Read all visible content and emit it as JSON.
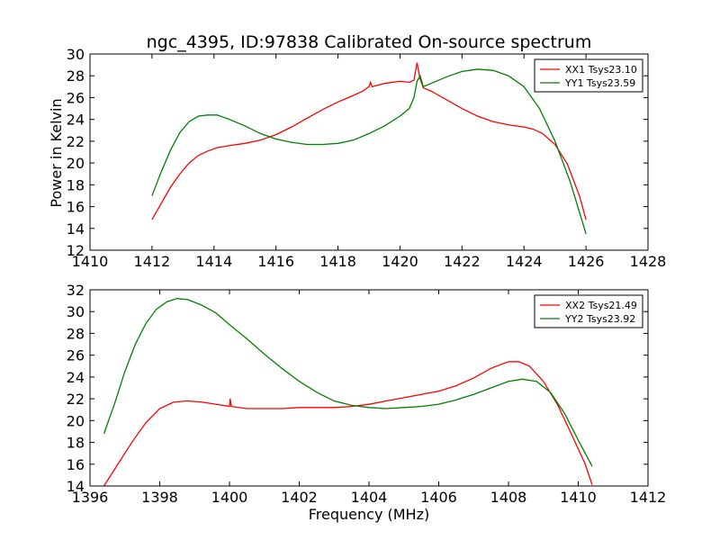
{
  "figure": {
    "title": "ngc_4395, ID:97838 Calibrated On-source spectrum",
    "ylabel": "Power in Kelvin",
    "xlabel": "Frequency (MHz)"
  },
  "chart_data": [
    {
      "type": "line",
      "xlim": [
        1410,
        1428
      ],
      "ylim": [
        12,
        30
      ],
      "xticks": [
        1410,
        1412,
        1414,
        1416,
        1418,
        1420,
        1422,
        1424,
        1426,
        1428
      ],
      "yticks": [
        12,
        14,
        16,
        18,
        20,
        22,
        24,
        26,
        28,
        30
      ],
      "legend": "top-right",
      "series": [
        {
          "name": "XX1 Tsys23.10",
          "color": "#ff0000",
          "points": [
            [
              1412.0,
              14.8
            ],
            [
              1412.3,
              16.3
            ],
            [
              1412.6,
              17.8
            ],
            [
              1412.9,
              19.0
            ],
            [
              1413.2,
              20.0
            ],
            [
              1413.5,
              20.7
            ],
            [
              1413.8,
              21.1
            ],
            [
              1414.1,
              21.4
            ],
            [
              1414.5,
              21.6
            ],
            [
              1415.0,
              21.8
            ],
            [
              1415.5,
              22.1
            ],
            [
              1416.0,
              22.6
            ],
            [
              1416.5,
              23.3
            ],
            [
              1417.0,
              24.1
            ],
            [
              1417.5,
              24.9
            ],
            [
              1418.0,
              25.6
            ],
            [
              1418.5,
              26.2
            ],
            [
              1418.8,
              26.6
            ],
            [
              1419.0,
              27.0
            ],
            [
              1419.05,
              27.4
            ],
            [
              1419.1,
              27.0
            ],
            [
              1419.5,
              27.3
            ],
            [
              1420.0,
              27.5
            ],
            [
              1420.3,
              27.4
            ],
            [
              1420.45,
              27.6
            ],
            [
              1420.55,
              29.2
            ],
            [
              1420.65,
              27.7
            ],
            [
              1420.75,
              26.9
            ],
            [
              1421.0,
              26.6
            ],
            [
              1421.5,
              25.8
            ],
            [
              1422.0,
              25.0
            ],
            [
              1422.5,
              24.3
            ],
            [
              1423.0,
              23.8
            ],
            [
              1423.5,
              23.5
            ],
            [
              1424.0,
              23.3
            ],
            [
              1424.3,
              23.1
            ],
            [
              1424.6,
              22.7
            ],
            [
              1425.0,
              21.7
            ],
            [
              1425.4,
              19.9
            ],
            [
              1425.8,
              16.9
            ],
            [
              1426.0,
              14.8
            ]
          ]
        },
        {
          "name": "YY1 Tsys23.59",
          "color": "#008000",
          "points": [
            [
              1412.0,
              17.0
            ],
            [
              1412.3,
              19.2
            ],
            [
              1412.6,
              21.2
            ],
            [
              1412.9,
              22.8
            ],
            [
              1413.2,
              23.8
            ],
            [
              1413.5,
              24.3
            ],
            [
              1413.8,
              24.4
            ],
            [
              1414.1,
              24.4
            ],
            [
              1414.5,
              24.0
            ],
            [
              1415.0,
              23.4
            ],
            [
              1415.5,
              22.7
            ],
            [
              1416.0,
              22.2
            ],
            [
              1416.5,
              21.9
            ],
            [
              1417.0,
              21.7
            ],
            [
              1417.5,
              21.7
            ],
            [
              1418.0,
              21.8
            ],
            [
              1418.5,
              22.1
            ],
            [
              1419.0,
              22.7
            ],
            [
              1419.5,
              23.4
            ],
            [
              1420.0,
              24.3
            ],
            [
              1420.3,
              25.0
            ],
            [
              1420.45,
              26.0
            ],
            [
              1420.55,
              27.5
            ],
            [
              1420.65,
              28.0
            ],
            [
              1420.75,
              27.0
            ],
            [
              1421.0,
              27.3
            ],
            [
              1421.5,
              27.9
            ],
            [
              1422.0,
              28.4
            ],
            [
              1422.5,
              28.6
            ],
            [
              1423.0,
              28.5
            ],
            [
              1423.5,
              28.0
            ],
            [
              1424.0,
              27.0
            ],
            [
              1424.5,
              25.0
            ],
            [
              1425.0,
              22.0
            ],
            [
              1425.5,
              18.2
            ],
            [
              1426.0,
              13.5
            ]
          ]
        }
      ]
    },
    {
      "type": "line",
      "xlim": [
        1396,
        1412
      ],
      "ylim": [
        14,
        32
      ],
      "xticks": [
        1396,
        1398,
        1400,
        1402,
        1404,
        1406,
        1408,
        1410,
        1412
      ],
      "yticks": [
        14,
        16,
        18,
        20,
        22,
        24,
        26,
        28,
        30,
        32
      ],
      "legend": "top-right",
      "series": [
        {
          "name": "XX2 Tsys21.49",
          "color": "#ff0000",
          "points": [
            [
              1396.4,
              14.0
            ],
            [
              1396.8,
              16.0
            ],
            [
              1397.2,
              18.0
            ],
            [
              1397.6,
              19.8
            ],
            [
              1398.0,
              21.1
            ],
            [
              1398.4,
              21.7
            ],
            [
              1398.8,
              21.8
            ],
            [
              1399.2,
              21.7
            ],
            [
              1399.6,
              21.5
            ],
            [
              1400.0,
              21.3
            ],
            [
              1400.02,
              22.0
            ],
            [
              1400.05,
              21.3
            ],
            [
              1400.5,
              21.1
            ],
            [
              1401.0,
              21.1
            ],
            [
              1401.5,
              21.1
            ],
            [
              1402.0,
              21.2
            ],
            [
              1402.5,
              21.2
            ],
            [
              1403.0,
              21.2
            ],
            [
              1403.5,
              21.3
            ],
            [
              1404.0,
              21.5
            ],
            [
              1404.5,
              21.8
            ],
            [
              1405.0,
              22.1
            ],
            [
              1405.5,
              22.4
            ],
            [
              1406.0,
              22.7
            ],
            [
              1406.5,
              23.2
            ],
            [
              1407.0,
              23.9
            ],
            [
              1407.5,
              24.8
            ],
            [
              1408.0,
              25.4
            ],
            [
              1408.3,
              25.4
            ],
            [
              1408.6,
              25.0
            ],
            [
              1409.0,
              23.6
            ],
            [
              1409.4,
              21.5
            ],
            [
              1409.8,
              18.8
            ],
            [
              1410.2,
              16.0
            ],
            [
              1410.4,
              14.1
            ]
          ]
        },
        {
          "name": "YY2 Tsys23.92",
          "color": "#008000",
          "points": [
            [
              1396.4,
              18.8
            ],
            [
              1396.7,
              21.5
            ],
            [
              1397.0,
              24.5
            ],
            [
              1397.3,
              27.0
            ],
            [
              1397.6,
              28.9
            ],
            [
              1397.9,
              30.2
            ],
            [
              1398.2,
              30.9
            ],
            [
              1398.5,
              31.2
            ],
            [
              1398.8,
              31.1
            ],
            [
              1399.2,
              30.6
            ],
            [
              1399.6,
              29.9
            ],
            [
              1400.0,
              28.8
            ],
            [
              1400.5,
              27.5
            ],
            [
              1401.0,
              26.1
            ],
            [
              1401.5,
              24.8
            ],
            [
              1402.0,
              23.6
            ],
            [
              1402.5,
              22.6
            ],
            [
              1403.0,
              21.8
            ],
            [
              1403.5,
              21.4
            ],
            [
              1404.0,
              21.2
            ],
            [
              1404.5,
              21.1
            ],
            [
              1405.0,
              21.2
            ],
            [
              1405.5,
              21.3
            ],
            [
              1406.0,
              21.5
            ],
            [
              1406.5,
              21.9
            ],
            [
              1407.0,
              22.4
            ],
            [
              1407.5,
              23.0
            ],
            [
              1408.0,
              23.6
            ],
            [
              1408.4,
              23.8
            ],
            [
              1408.8,
              23.6
            ],
            [
              1409.2,
              22.6
            ],
            [
              1409.6,
              20.7
            ],
            [
              1410.0,
              18.2
            ],
            [
              1410.4,
              15.8
            ]
          ]
        }
      ]
    }
  ]
}
